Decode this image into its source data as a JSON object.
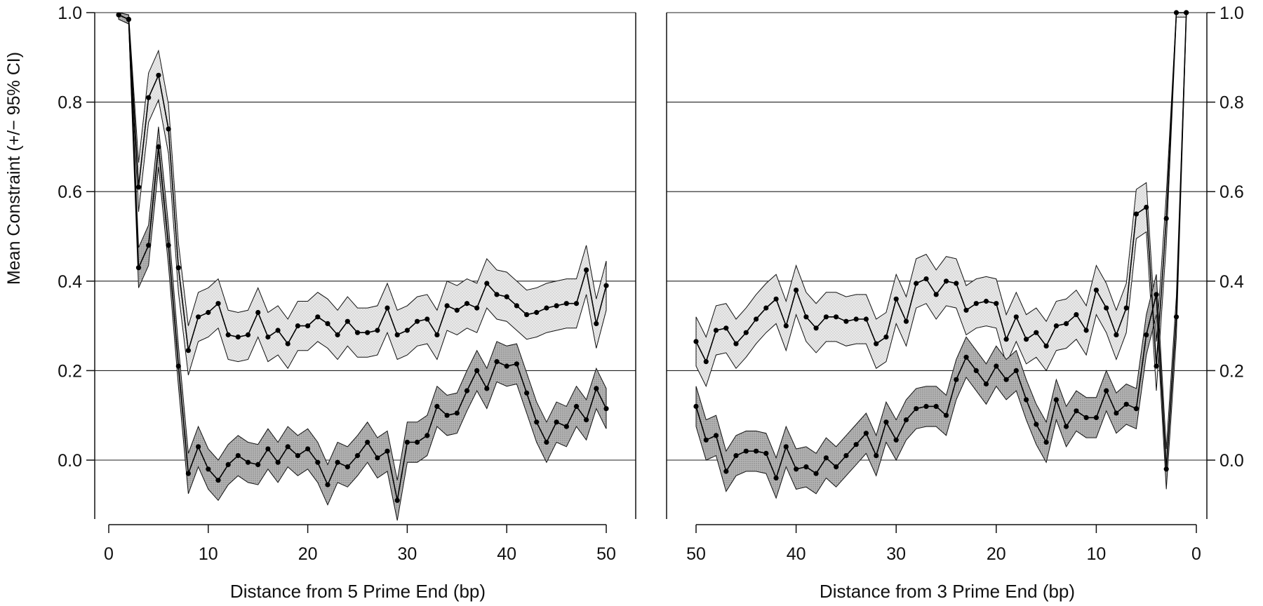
{
  "figure": {
    "ylabel": "Mean Constraint (+/− 95% CI)",
    "yticks": [
      "0.0",
      "0.2",
      "0.4",
      "0.6",
      "0.8",
      "1.0"
    ]
  },
  "chart_data": [
    {
      "type": "line",
      "panel": "left",
      "title": "",
      "xlabel": "Distance from 5 Prime End (bp)",
      "ylabel": "Mean Constraint (+/− 95% CI)",
      "xlim": [
        0,
        50
      ],
      "ylim": [
        -0.13,
        1.0
      ],
      "xticks": [
        0,
        10,
        20,
        30,
        40,
        50
      ],
      "yticks": [
        0.0,
        0.2,
        0.4,
        0.6,
        0.8,
        1.0
      ],
      "grid": "horizontal",
      "band_style": "95% CI shaded",
      "series": [
        {
          "style": "upper line, light band",
          "x": [
            1,
            2,
            3,
            4,
            5,
            6,
            7,
            8,
            9,
            10,
            11,
            12,
            13,
            14,
            15,
            16,
            17,
            18,
            19,
            20,
            21,
            22,
            23,
            24,
            25,
            26,
            27,
            28,
            29,
            30,
            31,
            32,
            33,
            34,
            35,
            36,
            37,
            38,
            39,
            40,
            41,
            42,
            43,
            44,
            45,
            46,
            47,
            48,
            49,
            50
          ],
          "y": [
            0.995,
            0.985,
            0.61,
            0.81,
            0.86,
            0.74,
            0.43,
            0.245,
            0.32,
            0.33,
            0.35,
            0.28,
            0.275,
            0.28,
            0.33,
            0.275,
            0.29,
            0.26,
            0.3,
            0.3,
            0.32,
            0.305,
            0.28,
            0.31,
            0.285,
            0.285,
            0.29,
            0.34,
            0.28,
            0.29,
            0.31,
            0.315,
            0.28,
            0.345,
            0.335,
            0.35,
            0.34,
            0.395,
            0.37,
            0.365,
            0.345,
            0.325,
            0.33,
            0.34,
            0.345,
            0.35,
            0.35,
            0.425,
            0.305,
            0.39
          ],
          "ci_halfwidth": 0.055
        },
        {
          "style": "lower line, dark band",
          "x": [
            1,
            2,
            3,
            4,
            5,
            6,
            7,
            8,
            9,
            10,
            11,
            12,
            13,
            14,
            15,
            16,
            17,
            18,
            19,
            20,
            21,
            22,
            23,
            24,
            25,
            26,
            27,
            28,
            29,
            30,
            31,
            32,
            33,
            34,
            35,
            36,
            37,
            38,
            39,
            40,
            41,
            42,
            43,
            44,
            45,
            46,
            47,
            48,
            49,
            50
          ],
          "y": [
            0.995,
            0.985,
            0.43,
            0.48,
            0.7,
            0.48,
            0.21,
            -0.03,
            0.03,
            -0.02,
            -0.045,
            -0.01,
            0.01,
            -0.005,
            -0.01,
            0.025,
            -0.005,
            0.03,
            0.01,
            0.025,
            -0.005,
            -0.055,
            -0.005,
            -0.015,
            0.01,
            0.04,
            0.005,
            0.02,
            -0.09,
            0.04,
            0.04,
            0.055,
            0.12,
            0.1,
            0.105,
            0.155,
            0.2,
            0.16,
            0.22,
            0.21,
            0.215,
            0.15,
            0.085,
            0.04,
            0.085,
            0.075,
            0.12,
            0.09,
            0.16,
            0.115
          ],
          "ci_halfwidth": 0.045
        }
      ]
    },
    {
      "type": "line",
      "panel": "right",
      "title": "",
      "xlabel": "Distance from 3 Prime End (bp)",
      "ylabel": "",
      "xlim": [
        50,
        0
      ],
      "ylim": [
        -0.13,
        1.0
      ],
      "xticks": [
        50,
        40,
        30,
        20,
        10,
        0
      ],
      "yticks": [
        0.0,
        0.2,
        0.4,
        0.6,
        0.8,
        1.0
      ],
      "grid": "horizontal",
      "band_style": "95% CI shaded",
      "series": [
        {
          "style": "upper line, light band",
          "x": [
            50,
            49,
            48,
            47,
            46,
            45,
            44,
            43,
            42,
            41,
            40,
            39,
            38,
            37,
            36,
            35,
            34,
            33,
            32,
            31,
            30,
            29,
            28,
            27,
            26,
            25,
            24,
            23,
            22,
            21,
            20,
            19,
            18,
            17,
            16,
            15,
            14,
            13,
            12,
            11,
            10,
            9,
            8,
            7,
            6,
            5,
            4,
            3,
            2,
            1
          ],
          "y": [
            0.265,
            0.22,
            0.29,
            0.295,
            0.26,
            0.285,
            0.315,
            0.34,
            0.36,
            0.3,
            0.38,
            0.32,
            0.295,
            0.32,
            0.32,
            0.31,
            0.315,
            0.315,
            0.26,
            0.275,
            0.36,
            0.31,
            0.395,
            0.405,
            0.37,
            0.4,
            0.395,
            0.335,
            0.35,
            0.355,
            0.35,
            0.27,
            0.32,
            0.27,
            0.285,
            0.255,
            0.3,
            0.305,
            0.325,
            0.29,
            0.38,
            0.34,
            0.28,
            0.34,
            0.55,
            0.565,
            0.21,
            0.54,
            1.0,
            1.0
          ],
          "ci_halfwidth": 0.055
        },
        {
          "style": "lower line, dark band",
          "x": [
            50,
            49,
            48,
            47,
            46,
            45,
            44,
            43,
            42,
            41,
            40,
            39,
            38,
            37,
            36,
            35,
            34,
            33,
            32,
            31,
            30,
            29,
            28,
            27,
            26,
            25,
            24,
            23,
            22,
            21,
            20,
            19,
            18,
            17,
            16,
            15,
            14,
            13,
            12,
            11,
            10,
            9,
            8,
            7,
            6,
            5,
            4,
            3,
            2,
            1
          ],
          "y": [
            0.12,
            0.045,
            0.055,
            -0.025,
            0.01,
            0.02,
            0.02,
            0.015,
            -0.04,
            0.03,
            -0.02,
            -0.015,
            -0.03,
            0.005,
            -0.015,
            0.01,
            0.035,
            0.06,
            0.01,
            0.085,
            0.045,
            0.09,
            0.115,
            0.12,
            0.12,
            0.1,
            0.18,
            0.23,
            0.2,
            0.17,
            0.21,
            0.18,
            0.2,
            0.135,
            0.08,
            0.04,
            0.135,
            0.075,
            0.11,
            0.095,
            0.095,
            0.155,
            0.105,
            0.125,
            0.115,
            0.28,
            0.37,
            -0.02,
            0.32,
            1.0
          ],
          "ci_halfwidth": 0.045
        }
      ]
    }
  ]
}
